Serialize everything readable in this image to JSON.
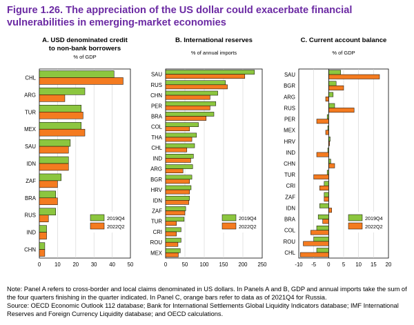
{
  "title": "Figure 1.26. The appreciation of the US dollar could exacerbate financial vulnerabilities in emerging-market economies",
  "note_text": "Note: Panel A refers to cross-border and local claims denominated in US dollars. In Panels A and B, GDP and annual imports take the sum of the four quarters finishing in the quarter indicated. In Panel C, orange bars refer to data as of 2021Q4 for Russia.",
  "source_text": "Source: OECD Economic Outlook 112 database; Bank for International Settlements Global Liquidity Indicators database; IMF International Reserves and Foreign Currency Liquidity database; and OECD calculations.",
  "colors": {
    "series1": "#8cc63f",
    "series2": "#f47b20",
    "title": "#6b2aa3"
  },
  "chart_data": [
    {
      "type": "bar",
      "orientation": "horizontal",
      "title": "A. USD denominated credit to non-bank borrowers",
      "title_lines": [
        "A. USD denominated credit",
        "to non-bank borrowers"
      ],
      "unit": "% of GDP",
      "categories": [
        "CHL",
        "ARG",
        "TUR",
        "MEX",
        "SAU",
        "IDN",
        "ZAF",
        "BRA",
        "RUS",
        "IND",
        "CHN"
      ],
      "series": [
        {
          "name": "2019Q4",
          "values": [
            41,
            25,
            23,
            23,
            17,
            16,
            12,
            9,
            9,
            4,
            3
          ]
        },
        {
          "name": "2022Q2",
          "values": [
            46,
            14,
            24,
            25,
            16,
            16,
            10,
            10,
            5,
            4,
            3
          ]
        }
      ],
      "xlim": [
        0,
        50
      ],
      "xticks": [
        0,
        10,
        20,
        30,
        40,
        50
      ],
      "grid": true,
      "legend_position": "bottom-right"
    },
    {
      "type": "bar",
      "orientation": "horizontal",
      "title": "B. International reserves",
      "title_lines": [
        "B. International reserves"
      ],
      "unit": "% of annual imports",
      "categories": [
        "SAU",
        "RUS",
        "CHN",
        "PER",
        "BRA",
        "COL",
        "THA",
        "CHL",
        "IND",
        "ARG",
        "BGR",
        "HRV",
        "IDN",
        "ZAF",
        "TUR",
        "CRI",
        "ROU",
        "MEX"
      ],
      "series": [
        {
          "name": "2019Q4",
          "values": [
            230,
            155,
            135,
            130,
            125,
            85,
            80,
            75,
            72,
            70,
            68,
            66,
            62,
            52,
            48,
            40,
            40,
            38
          ]
        },
        {
          "name": "2022Q2",
          "values": [
            205,
            160,
            115,
            115,
            105,
            62,
            68,
            55,
            65,
            45,
            62,
            62,
            60,
            50,
            28,
            28,
            32,
            33
          ]
        }
      ],
      "xlim": [
        0,
        250
      ],
      "xticks": [
        0,
        50,
        100,
        150,
        200,
        250
      ],
      "grid": true,
      "legend_position": "bottom-right"
    },
    {
      "type": "bar",
      "orientation": "horizontal",
      "title": "C. Current account balance",
      "title_lines": [
        "C. Current account balance"
      ],
      "unit": "% of GDP",
      "categories": [
        "SAU",
        "BGR",
        "ARG",
        "RUS",
        "PER",
        "MEX",
        "HRV",
        "IND",
        "CHN",
        "TUR",
        "CRI",
        "ZAF",
        "IDN",
        "BRA",
        "COL",
        "ROU",
        "CHL"
      ],
      "series": [
        {
          "name": "2019Q4",
          "values": [
            4,
            2.5,
            1.5,
            2,
            -0.5,
            -0.3,
            0.5,
            -0.3,
            0.7,
            -0.5,
            -1.5,
            -1.5,
            -3,
            -3.5,
            -4,
            -5,
            -4
          ]
        },
        {
          "name": "2022Q2",
          "values": [
            17,
            5,
            -1,
            8.5,
            -4,
            -1,
            0.3,
            -4,
            2,
            -5,
            -3,
            -1.5,
            1,
            -2,
            -6,
            -8.5,
            -9.5
          ]
        }
      ],
      "xlim": [
        -10,
        20
      ],
      "xticks": [
        -10,
        -5,
        0,
        5,
        10,
        15,
        20
      ],
      "grid": true,
      "legend_position": "bottom-right"
    }
  ]
}
